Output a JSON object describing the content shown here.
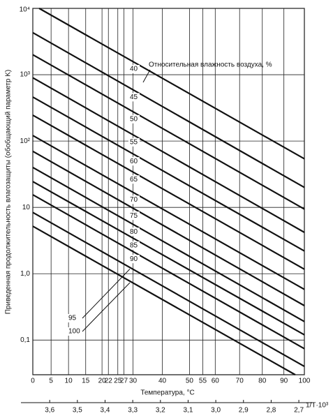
{
  "chart_data": {
    "type": "line",
    "ylabel": "Приведенная продолжительность влагозащиты (обобщающий параметр K)",
    "xlabel": "Температура, °C",
    "x2label": "1/T·10³",
    "annotation": "Относительная влажность воздуха, %",
    "log_y": true,
    "grid": true,
    "color": "#111111",
    "xlim": [
      3.661,
      2.68
    ],
    "ylim": [
      0.03,
      10000
    ],
    "yticks": [
      {
        "value": 0.1,
        "label": "0,1"
      },
      {
        "value": 1,
        "label": "1,0"
      },
      {
        "value": 10,
        "label": "10"
      },
      {
        "value": 100,
        "label": "10²"
      },
      {
        "value": 1000,
        "label": "10³"
      },
      {
        "value": 10000,
        "label": "10⁴"
      }
    ],
    "xticks": [
      {
        "value": 3.661,
        "label": "0"
      },
      {
        "value": 3.595,
        "label": "5"
      },
      {
        "value": 3.532,
        "label": "10"
      },
      {
        "value": 3.47,
        "label": "15"
      },
      {
        "value": 3.411,
        "label": "20"
      },
      {
        "value": 3.388,
        "label": "22"
      },
      {
        "value": 3.354,
        "label": "25"
      },
      {
        "value": 3.332,
        "label": "27"
      },
      {
        "value": 3.299,
        "label": "30"
      },
      {
        "value": 3.193,
        "label": "40"
      },
      {
        "value": 3.095,
        "label": "50"
      },
      {
        "value": 3.047,
        "label": "55"
      },
      {
        "value": 3.002,
        "label": "60"
      },
      {
        "value": 2.914,
        "label": "70"
      },
      {
        "value": 2.832,
        "label": "80"
      },
      {
        "value": 2.754,
        "label": "90"
      },
      {
        "value": 2.68,
        "label": "100"
      }
    ],
    "x2ticks": [
      {
        "value": 3.6,
        "label": "3,6"
      },
      {
        "value": 3.5,
        "label": "3,5"
      },
      {
        "value": 3.4,
        "label": "3,4"
      },
      {
        "value": 3.3,
        "label": "3,3"
      },
      {
        "value": 3.2,
        "label": "3,2"
      },
      {
        "value": 3.1,
        "label": "3,1"
      },
      {
        "value": 3.0,
        "label": "3,0"
      },
      {
        "value": 2.9,
        "label": "2,9"
      },
      {
        "value": 2.8,
        "label": "2,8"
      },
      {
        "value": 2.7,
        "label": "2,7"
      }
    ],
    "series": [
      {
        "name": "40",
        "x": [
          3.638,
          2.68
        ],
        "values": [
          10000,
          54
        ]
      },
      {
        "name": "45",
        "x": [
          3.661,
          2.68
        ],
        "values": [
          4300,
          20
        ]
      },
      {
        "name": "50",
        "x": [
          3.661,
          2.68
        ],
        "values": [
          2000,
          9.4
        ]
      },
      {
        "name": "55",
        "x": [
          3.661,
          2.68
        ],
        "values": [
          900,
          4.2
        ]
      },
      {
        "name": "60",
        "x": [
          3.661,
          2.68
        ],
        "values": [
          460,
          2.2
        ]
      },
      {
        "name": "65",
        "x": [
          3.661,
          2.68
        ],
        "values": [
          245,
          1.17
        ]
      },
      {
        "name": "70",
        "x": [
          3.661,
          2.68
        ],
        "values": [
          121,
          0.58
        ]
      },
      {
        "name": "75",
        "x": [
          3.661,
          2.68
        ],
        "values": [
          70,
          0.33
        ]
      },
      {
        "name": "80",
        "x": [
          3.661,
          2.68
        ],
        "values": [
          40,
          0.19
        ]
      },
      {
        "name": "85",
        "x": [
          3.661,
          2.68
        ],
        "values": [
          24.5,
          0.12
        ]
      },
      {
        "name": "90",
        "x": [
          3.661,
          2.68
        ],
        "values": [
          15.5,
          0.074
        ]
      },
      {
        "name": "95",
        "x": [
          3.661,
          2.68
        ],
        "values": [
          8.4,
          0.04
        ]
      },
      {
        "name": "100",
        "x": [
          3.661,
          2.713
        ],
        "values": [
          5.2,
          0.03
        ]
      }
    ]
  }
}
